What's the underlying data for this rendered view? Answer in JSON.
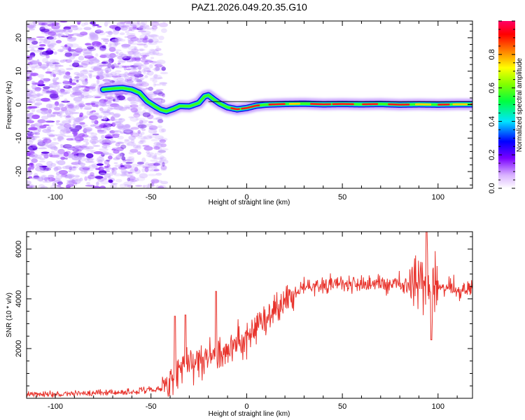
{
  "title": "PAZ1.2026.049.20.35.G10",
  "chart_data": [
    {
      "type": "heatmap",
      "xlabel": "Height of straight line (km)",
      "ylabel": "Frequency (Hz)",
      "xlim": [
        -115,
        118
      ],
      "ylim": [
        -25,
        25
      ],
      "xticks": [
        -100,
        -50,
        0,
        50,
        100
      ],
      "yticks": [
        -20,
        -10,
        0,
        10,
        20
      ],
      "colorbar": {
        "label": "Normalized spectral amplitude",
        "range": [
          0,
          1
        ],
        "ticks": [
          "0.0",
          "0.2",
          "0.4",
          "0.6",
          "0.8"
        ],
        "colors": [
          "#ffffff",
          "#9c00ff",
          "#0000ff",
          "#00e5ff",
          "#00ff00",
          "#ffff00",
          "#ff8000",
          "#ff0000",
          "#ff0066"
        ]
      },
      "ridge": {
        "x": [
          -75,
          -70,
          -65,
          -60,
          -56,
          -52,
          -48,
          -45,
          -42,
          -38,
          -35,
          -30,
          -25,
          -22,
          -20,
          -17,
          -14,
          -10,
          -5,
          0,
          5,
          10,
          20,
          30,
          40,
          50,
          60,
          70,
          80,
          90,
          100,
          110,
          118
        ],
        "y": [
          4.5,
          4.8,
          5.0,
          4.5,
          3.5,
          1.0,
          -0.5,
          -1.5,
          -2.0,
          -1.2,
          -0.4,
          -0.5,
          0.5,
          2.5,
          2.8,
          1.5,
          0.3,
          -0.8,
          -1.4,
          -1.0,
          -0.3,
          0.0,
          0.2,
          0.3,
          0.1,
          0.2,
          0.1,
          0.2,
          0.0,
          0.1,
          0.0,
          0.1,
          0.1
        ]
      }
    },
    {
      "type": "line",
      "xlabel": "Height of straight line (km)",
      "ylabel": "SNR (10 * v/v)",
      "xlim": [
        -115,
        118
      ],
      "ylim": [
        0,
        6700
      ],
      "xticks": [
        -100,
        -50,
        0,
        50,
        100
      ],
      "yticks": [
        2000,
        4000,
        6000
      ],
      "color": "#e8332c",
      "envelope": {
        "x": [
          -115,
          -100,
          -80,
          -60,
          -50,
          -45,
          -40,
          -35,
          -30,
          -25,
          -20,
          -15,
          -10,
          -5,
          0,
          5,
          10,
          15,
          20,
          25,
          30,
          40,
          50,
          60,
          70,
          80,
          88,
          93,
          97,
          100,
          105,
          110,
          118
        ],
        "values": [
          150,
          180,
          220,
          260,
          330,
          380,
          650,
          1100,
          1450,
          1550,
          1700,
          1850,
          1950,
          2150,
          2500,
          2850,
          3200,
          3550,
          3900,
          4200,
          4450,
          4550,
          4600,
          4600,
          4600,
          4550,
          4500,
          4400,
          4450,
          4500,
          4450,
          4400,
          4450
        ]
      }
    }
  ]
}
